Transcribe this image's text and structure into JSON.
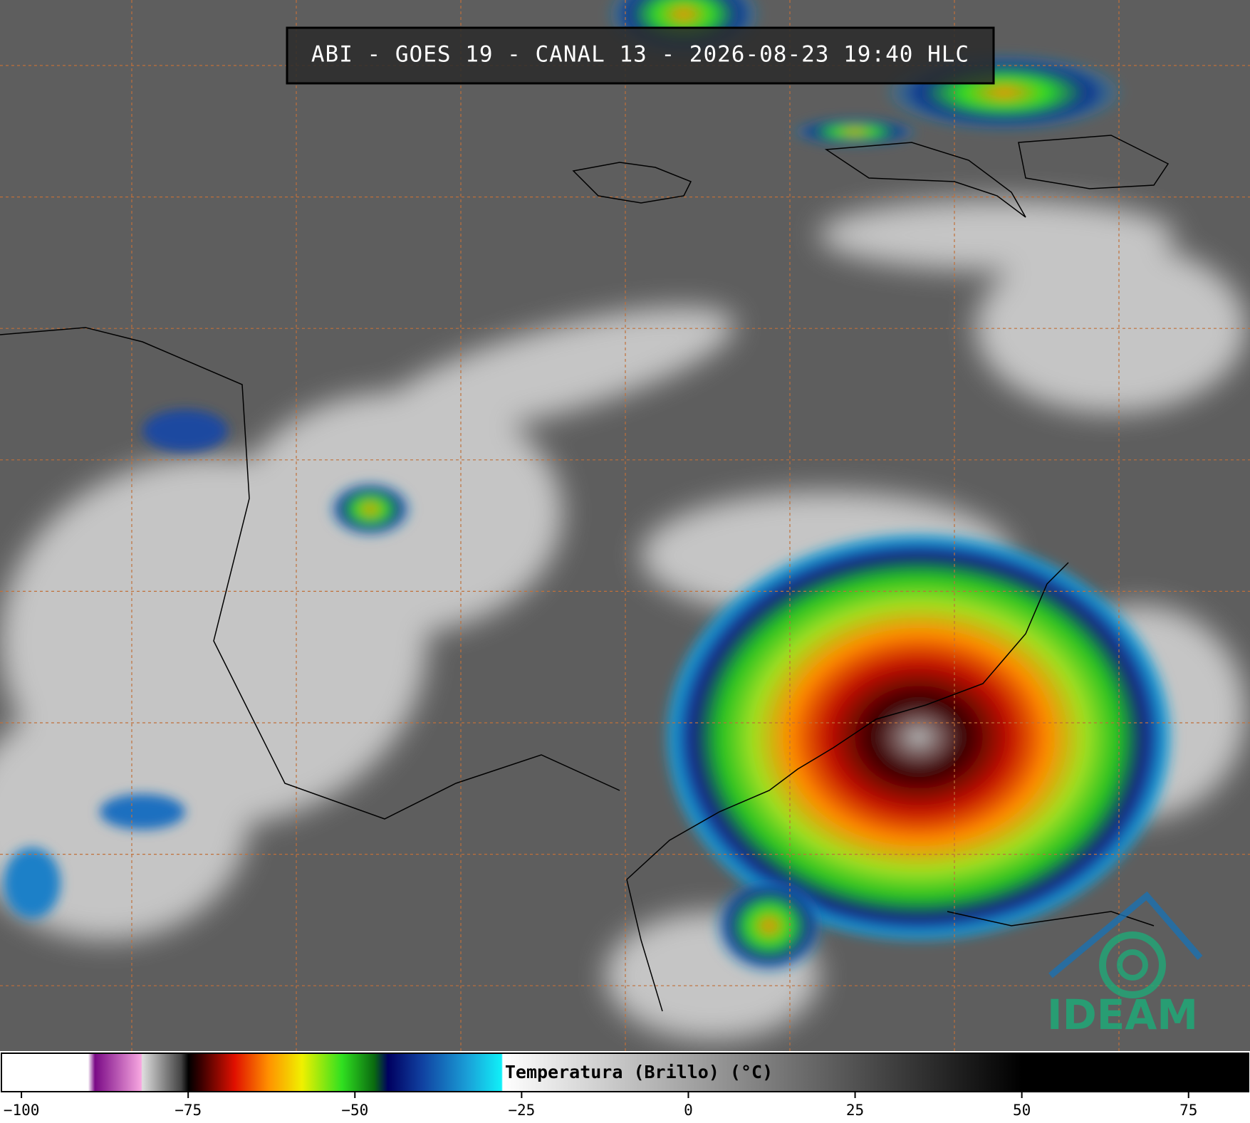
{
  "title": "ABI - GOES 19 - CANAL 13 - 2026-08-23 19:40 HLC",
  "colorbar": {
    "label": "Temperatura (Brillo) (°C)",
    "range": [
      -103,
      84
    ],
    "ticks": [
      {
        "value": -100,
        "label": "−100"
      },
      {
        "value": -75,
        "label": "−75"
      },
      {
        "value": -50,
        "label": "−50"
      },
      {
        "value": -25,
        "label": "−25"
      },
      0,
      25,
      50,
      75
    ]
  },
  "logo": "IDEAM"
}
